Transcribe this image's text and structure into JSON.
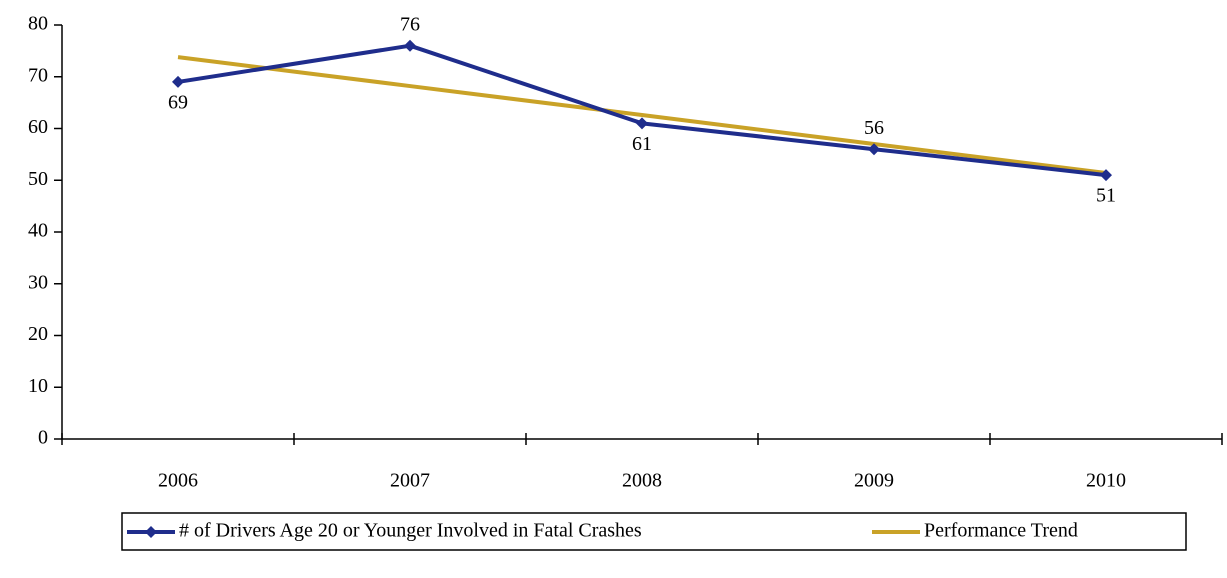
{
  "chart_data": {
    "type": "line",
    "categories": [
      "2006",
      "2007",
      "2008",
      "2009",
      "2010"
    ],
    "series": [
      {
        "name": "# of Drivers Age 20 or Younger Involved in Fatal Crashes",
        "color": "#1f2d8c",
        "values": [
          69,
          76,
          61,
          56,
          51
        ],
        "markers": true,
        "data_labels": true
      },
      {
        "name": "Performance Trend",
        "color": "#c9a227",
        "values": [
          73.8,
          68.2,
          62.6,
          57.0,
          51.4
        ],
        "markers": false,
        "data_labels": false
      }
    ],
    "ylim": [
      0,
      80
    ],
    "yticks": [
      0,
      10,
      20,
      30,
      40,
      50,
      60,
      70,
      80
    ],
    "grid": false,
    "legend": "bottom"
  }
}
